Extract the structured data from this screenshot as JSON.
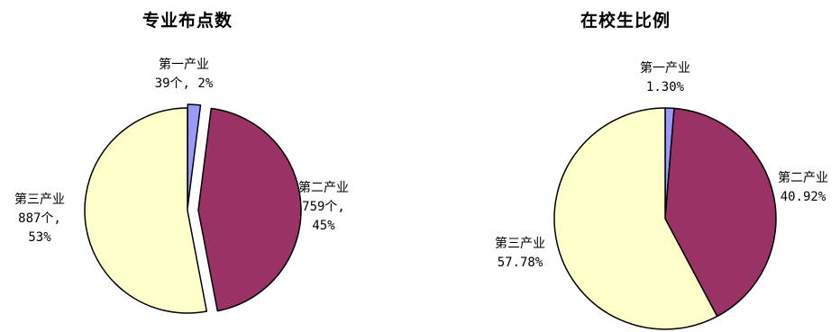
{
  "colors": {
    "primary": "#9999ff",
    "secondary": "#993366",
    "tertiary": "#ffffcc",
    "stroke": "#000000"
  },
  "chart_data": [
    {
      "type": "pie",
      "title": "专业布点数",
      "slices": [
        {
          "name": "第一产业",
          "count": "39个",
          "percent": 2,
          "label_value": "39个, 2%"
        },
        {
          "name": "第二产业",
          "count": "759个",
          "percent": 45,
          "label_value": "759个,",
          "label_extra": "45%"
        },
        {
          "name": "第三产业",
          "count": "887个",
          "percent": 53,
          "label_value": "887个,",
          "label_extra": "53%"
        }
      ]
    },
    {
      "type": "pie",
      "title": "在校生比例",
      "slices": [
        {
          "name": "第一产业",
          "percent": 1.3,
          "label_value": "1.30%"
        },
        {
          "name": "第二产业",
          "percent": 40.92,
          "label_value": "40.92%"
        },
        {
          "name": "第三产业",
          "percent": 57.78,
          "label_value": "57.78%"
        }
      ]
    }
  ]
}
